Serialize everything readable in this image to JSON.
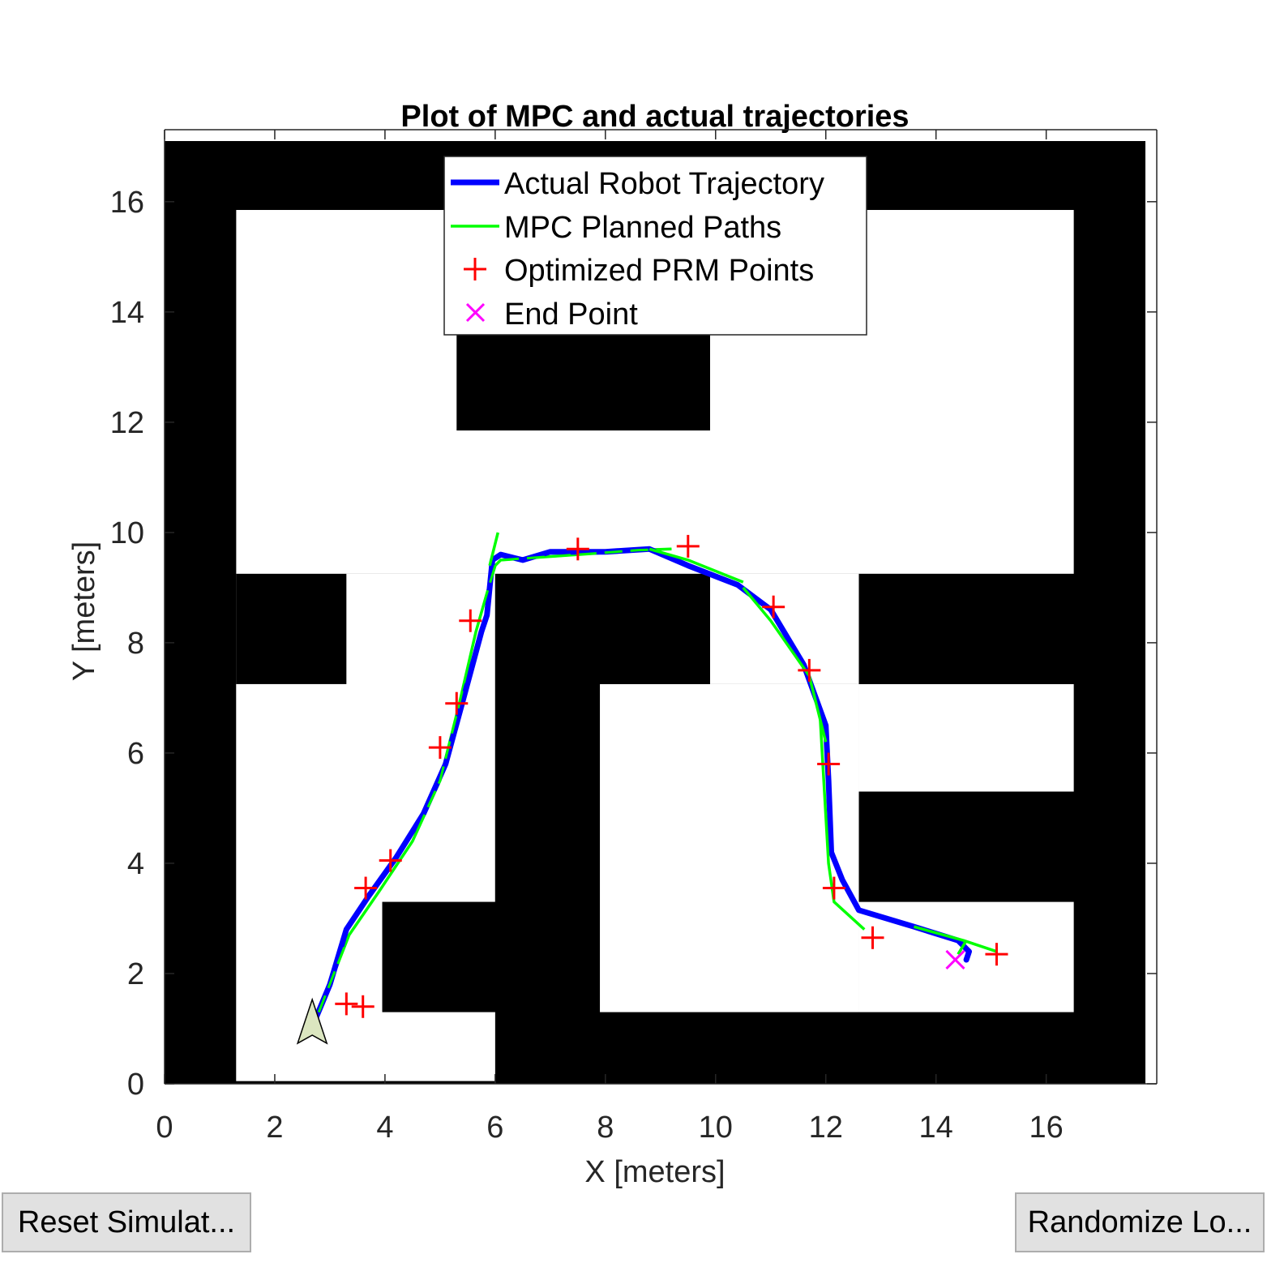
{
  "buttons": {
    "reset_label": "Reset Simulat...",
    "randomize_label": "Randomize Lo..."
  },
  "chart_data": {
    "type": "line",
    "title": "Plot of MPC and actual trajectories",
    "xlabel": "X [meters]",
    "ylabel": "Y [meters]",
    "xlim": [
      0,
      17.8
    ],
    "ylim": [
      0,
      17.1
    ],
    "xticks": [
      0,
      2,
      4,
      6,
      8,
      10,
      12,
      14,
      16
    ],
    "yticks": [
      0,
      2,
      4,
      6,
      8,
      10,
      12,
      14,
      16
    ],
    "grid": false,
    "legend_position": "top-center",
    "colors": {
      "obstacle": "#000000",
      "free_space": "#ffffff",
      "actual": "#0000ff",
      "mpc": "#00ff00",
      "prm": "#ff0000",
      "end": "#ff00ff",
      "robot": "#dbe6c0"
    },
    "map": {
      "extent": {
        "x": [
          0,
          17.8
        ],
        "y": [
          0,
          17.1
        ]
      },
      "free_regions": [
        {
          "x": [
            1.3,
            16.5
          ],
          "y": [
            9.25,
            15.85
          ]
        },
        {
          "x": [
            1.3,
            6.0
          ],
          "y": [
            0.05,
            9.25
          ]
        },
        {
          "x": [
            6.0,
            10.0
          ],
          "y": [
            9.25,
            9.25
          ]
        },
        {
          "x": [
            1.3,
            3.9
          ],
          "y": [
            3.3,
            7.25
          ]
        },
        {
          "x": [
            1.3,
            3.95
          ],
          "y": [
            0.05,
            3.3
          ]
        },
        {
          "x": [
            7.9,
            12.6
          ],
          "y": [
            1.3,
            7.25
          ]
        },
        {
          "x": [
            9.9,
            12.6
          ],
          "y": [
            7.25,
            9.25
          ]
        },
        {
          "x": [
            12.6,
            16.5
          ],
          "y": [
            5.3,
            7.25
          ]
        },
        {
          "x": [
            12.6,
            16.5
          ],
          "y": [
            1.3,
            3.3
          ]
        }
      ],
      "obstacles": [
        {
          "x": [
            5.3,
            9.9
          ],
          "y": [
            11.85,
            13.8
          ]
        },
        {
          "x": [
            1.3,
            3.3
          ],
          "y": [
            7.25,
            9.25
          ]
        },
        {
          "x": [
            6.0,
            9.9
          ],
          "y": [
            7.25,
            9.25
          ]
        },
        {
          "x": [
            6.0,
            7.9
          ],
          "y": [
            3.3,
            7.25
          ]
        },
        {
          "x": [
            3.95,
            7.9
          ],
          "y": [
            1.3,
            3.3
          ]
        },
        {
          "x": [
            12.6,
            16.5
          ],
          "y": [
            7.25,
            9.25
          ]
        },
        {
          "x": [
            12.6,
            16.5
          ],
          "y": [
            3.3,
            5.3
          ]
        }
      ]
    },
    "series": [
      {
        "name": "Actual Robot Trajectory",
        "x": [
          2.75,
          3.0,
          3.3,
          3.7,
          4.2,
          4.7,
          5.1,
          5.4,
          5.75,
          5.85,
          5.95,
          6.1,
          6.5,
          7.0,
          8.0,
          8.8,
          9.5,
          10.4,
          11.0,
          11.6,
          12.0,
          12.05,
          12.1,
          12.3,
          12.6,
          13.6,
          14.4,
          14.6,
          14.55
        ],
        "y": [
          1.2,
          1.8,
          2.8,
          3.4,
          4.1,
          4.9,
          5.8,
          6.9,
          8.2,
          8.5,
          9.5,
          9.6,
          9.5,
          9.65,
          9.65,
          9.7,
          9.4,
          9.05,
          8.6,
          7.6,
          6.5,
          5.5,
          4.2,
          3.7,
          3.15,
          2.85,
          2.6,
          2.4,
          2.25
        ]
      },
      {
        "name": "MPC Planned Paths",
        "x": [
          2.8,
          3.35,
          3.9,
          4.5,
          5.0,
          5.35,
          5.65,
          5.85,
          6.0,
          6.1,
          6.8,
          7.8,
          8.6,
          9.2
        ],
        "y": [
          1.3,
          2.7,
          3.5,
          4.4,
          5.5,
          6.9,
          8.2,
          8.9,
          9.4,
          9.5,
          9.55,
          9.62,
          9.68,
          9.7
        ],
        "segments": [
          {
            "x": [
              5.9,
              6.05
            ],
            "y": [
              9.4,
              10.0
            ]
          },
          {
            "x": [
              8.8,
              9.5,
              10.5
            ],
            "y": [
              9.7,
              9.5,
              9.1
            ]
          },
          {
            "x": [
              10.5,
              11.0,
              11.7,
              12.0
            ],
            "y": [
              9.0,
              8.4,
              7.4,
              6.2
            ]
          },
          {
            "x": [
              11.9,
              12.05,
              12.15,
              12.7
            ],
            "y": [
              6.6,
              4.0,
              3.3,
              2.8
            ]
          },
          {
            "x": [
              13.6,
              14.5,
              15.1
            ],
            "y": [
              2.85,
              2.6,
              2.4
            ]
          },
          {
            "x": [
              14.4,
              14.55
            ],
            "y": [
              2.35,
              2.6
            ]
          }
        ]
      },
      {
        "name": "Optimized PRM Points",
        "marker": "+",
        "x": [
          3.3,
          3.6,
          3.65,
          4.1,
          5.0,
          5.3,
          5.55,
          7.5,
          9.5,
          11.05,
          11.7,
          12.05,
          12.15,
          12.85,
          15.1
        ],
        "y": [
          1.45,
          1.4,
          3.55,
          4.05,
          6.1,
          6.9,
          8.4,
          9.7,
          9.75,
          8.65,
          7.5,
          5.8,
          3.55,
          2.65,
          2.35
        ]
      },
      {
        "name": "End Point",
        "marker": "x",
        "x": [
          14.35
        ],
        "y": [
          2.25
        ]
      }
    ],
    "robot": {
      "x": 2.68,
      "y": 1.0,
      "heading_deg": 90
    }
  }
}
